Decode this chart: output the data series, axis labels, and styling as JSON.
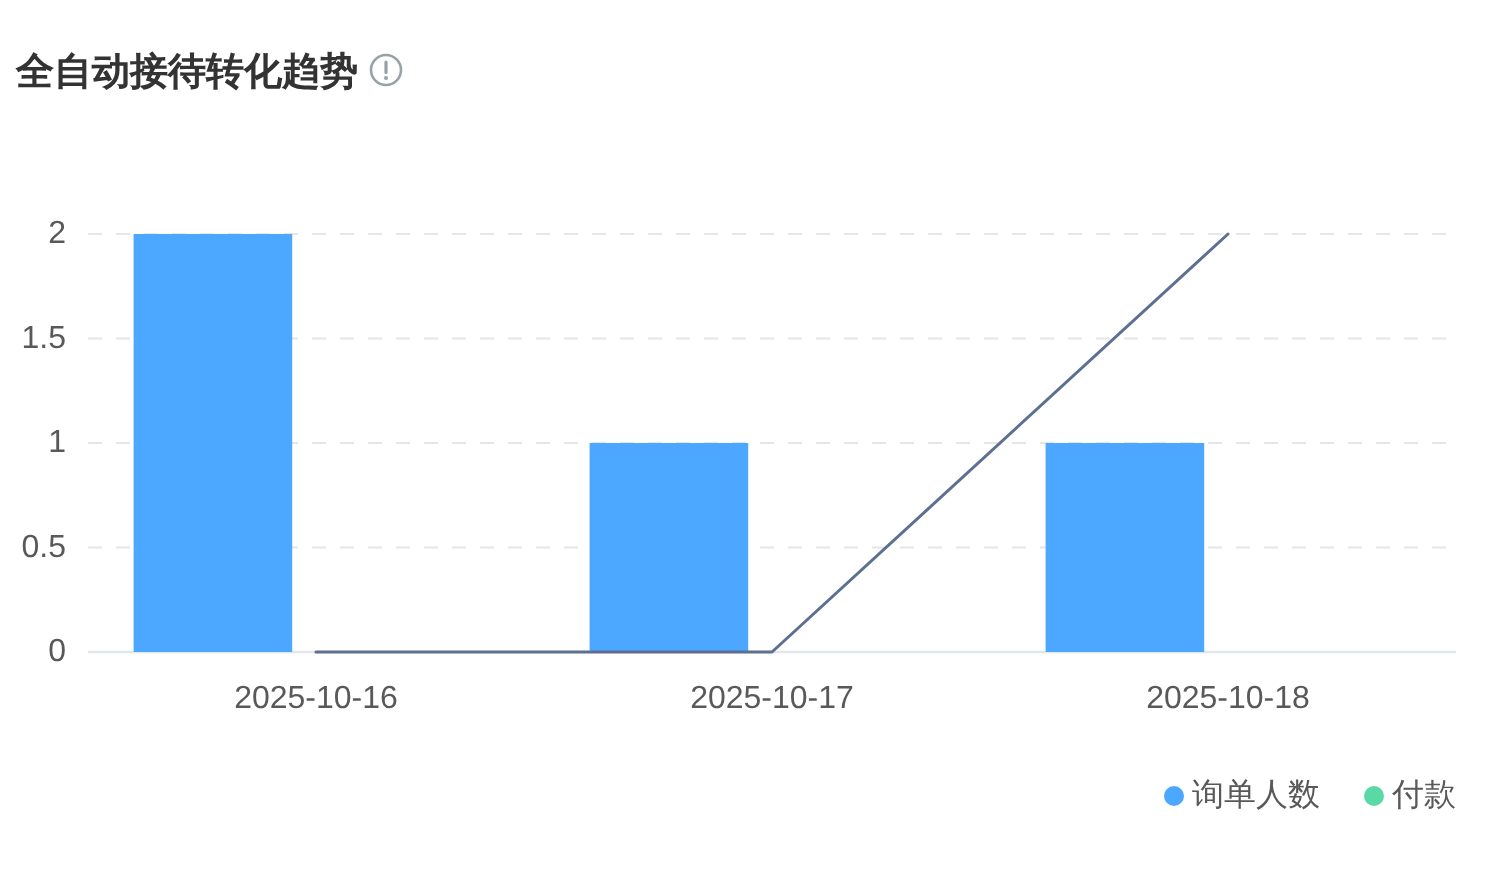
{
  "chart_data": {
    "type": "bar",
    "title": "全自动接待转化趋势",
    "categories": [
      "2025-10-16",
      "2025-10-17",
      "2025-10-18"
    ],
    "series": [
      {
        "name": "询单人数",
        "color": "#4ba7ff",
        "values": [
          2,
          1,
          1
        ]
      },
      {
        "name": "付款",
        "color": "#5ad8a6",
        "values": [
          0,
          0,
          0
        ]
      },
      {
        "type": "line",
        "color": "#5d7092",
        "values": [
          0,
          0,
          2
        ]
      }
    ],
    "ylim": [
      0,
      2
    ],
    "yticks": [
      0,
      0.5,
      1,
      1.5,
      2
    ],
    "grid": "y",
    "legend": "bottom right"
  }
}
